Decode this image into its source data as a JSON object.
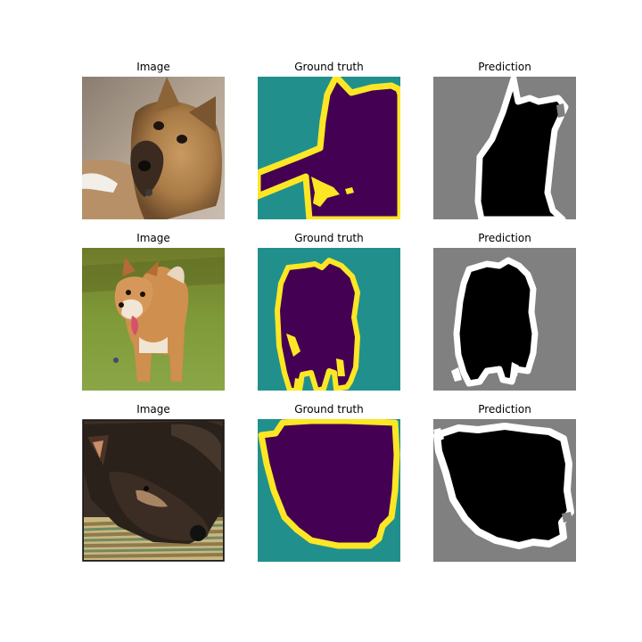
{
  "figure": {
    "rows": [
      {
        "titles": {
          "image": "Image",
          "ground_truth": "Ground truth",
          "prediction": "Prediction"
        }
      },
      {
        "titles": {
          "image": "Image",
          "ground_truth": "Ground truth",
          "prediction": "Prediction"
        }
      },
      {
        "titles": {
          "image": "Image",
          "ground_truth": "Ground truth",
          "prediction": "Prediction"
        }
      }
    ],
    "colors": {
      "gt_background": "#21908d",
      "gt_foreground": "#440154",
      "gt_border": "#fde725",
      "pred_background": "#808080",
      "pred_foreground": "#000000",
      "pred_border": "#ffffff"
    }
  }
}
